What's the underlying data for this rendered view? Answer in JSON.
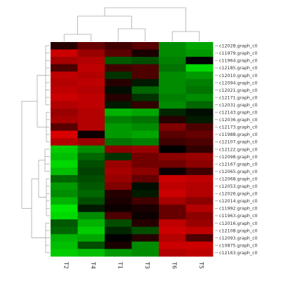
{
  "chart_data": {
    "type": "heatmap",
    "columns": [
      "T2",
      "T4",
      "T1",
      "T3",
      "T6",
      "T5"
    ],
    "rows": [
      "c12028.graph_c0",
      "c11979.graph_c0",
      "c11964.graph_c0",
      "c12185.graph_c0",
      "c12010.graph_c0",
      "c12094.graph_c0",
      "c12021.graph_c0",
      "c12171.graph_c0",
      "c12031.graph_c0",
      "c12143.graph_c0",
      "c12036.graph_c0",
      "c12173.graph_c0",
      "c11988.graph_c0",
      "c12107.graph_c0",
      "c12122.graph_c0",
      "c12098.graph_c0",
      "c12167.graph_c0",
      "c12065.graph_c0",
      "c12068.graph_c0",
      "c12053.graph_c0",
      "c12026.graph_c0",
      "c12014.graph_c0",
      "c11992.graph_c0",
      "c11963.graph_c0",
      "c12016.graph_c0",
      "c12108.graph_c0",
      "c12093.graph_c0",
      "c10875.graph_c0",
      "c12163.graph_c0"
    ],
    "values": [
      [
        0.15,
        0.4,
        0.25,
        0.35,
        -0.55,
        -0.65
      ],
      [
        0.8,
        0.6,
        0.35,
        0.1,
        -0.55,
        -0.6
      ],
      [
        0.65,
        0.7,
        -0.35,
        -0.3,
        -0.5,
        0.0
      ],
      [
        0.3,
        0.75,
        0.25,
        0.3,
        -0.45,
        -0.85
      ],
      [
        0.75,
        0.7,
        -0.2,
        0.3,
        -0.55,
        -0.6
      ],
      [
        0.7,
        0.75,
        0.15,
        -0.1,
        -0.55,
        -0.5
      ],
      [
        0.75,
        0.7,
        -0.05,
        -0.4,
        -0.55,
        -0.45
      ],
      [
        0.8,
        0.75,
        0.15,
        -0.2,
        -0.5,
        -0.55
      ],
      [
        0.7,
        0.75,
        -0.1,
        0.2,
        -0.55,
        -0.4
      ],
      [
        0.6,
        0.7,
        -0.7,
        -0.65,
        -0.15,
        -0.05
      ],
      [
        0.65,
        0.7,
        -0.5,
        -0.45,
        0.15,
        -0.1
      ],
      [
        0.35,
        0.7,
        -0.6,
        -0.55,
        0.5,
        0.3
      ],
      [
        0.85,
        0.05,
        -0.6,
        -0.65,
        0.35,
        0.4
      ],
      [
        0.7,
        0.6,
        -0.45,
        -0.5,
        0.25,
        0.3
      ],
      [
        -0.8,
        -0.55,
        0.55,
        0.6,
        0.0,
        0.2
      ],
      [
        -0.75,
        -0.4,
        -0.2,
        0.45,
        0.55,
        0.6
      ],
      [
        -0.85,
        -0.3,
        0.6,
        0.45,
        0.45,
        0.55
      ],
      [
        -0.75,
        -0.25,
        0.65,
        0.55,
        0.05,
        0.25
      ],
      [
        -0.4,
        -0.3,
        0.6,
        0.4,
        0.8,
        0.75
      ],
      [
        -0.6,
        -0.35,
        0.5,
        -0.05,
        0.75,
        0.7
      ],
      [
        -0.55,
        -0.4,
        0.15,
        -0.1,
        0.8,
        0.7
      ],
      [
        -0.7,
        -0.3,
        0.1,
        0.25,
        0.65,
        0.55
      ],
      [
        -0.9,
        -0.1,
        0.05,
        0.1,
        0.4,
        0.7
      ],
      [
        -0.85,
        -0.55,
        0.3,
        0.05,
        0.4,
        0.55
      ],
      [
        -0.35,
        -0.7,
        -0.3,
        0.15,
        0.75,
        0.6
      ],
      [
        -0.4,
        -0.8,
        -0.15,
        -0.3,
        0.8,
        0.75
      ],
      [
        -0.7,
        -0.65,
        0.0,
        0.15,
        0.7,
        0.3
      ],
      [
        -0.75,
        -0.3,
        0.1,
        -0.55,
        0.8,
        0.8
      ],
      [
        -0.8,
        -0.75,
        -0.6,
        -0.55,
        0.7,
        0.75
      ]
    ],
    "color_scale": {
      "low": "#00ff00",
      "mid": "#000000",
      "high": "#ff0000"
    },
    "legend": "none",
    "grid": false
  }
}
